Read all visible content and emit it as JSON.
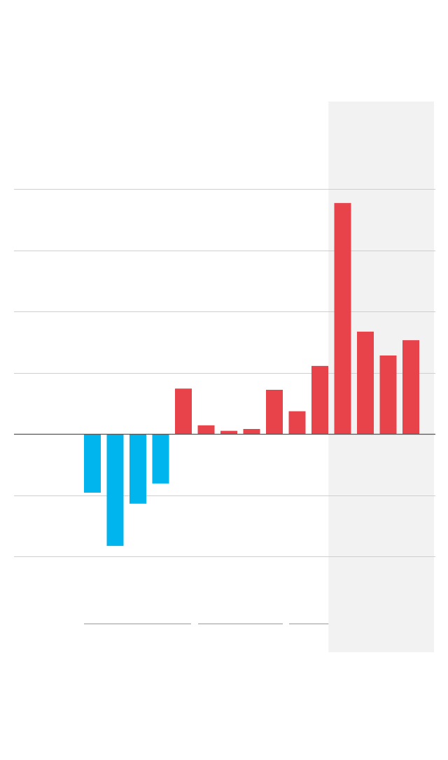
{
  "chart_data": {
    "type": "bar",
    "categories": [
      null,
      null,
      null,
      null,
      null,
      null,
      null,
      null,
      null,
      null,
      null,
      null,
      null,
      null,
      null,
      null,
      null,
      null
    ],
    "values": [
      null,
      null,
      null,
      -0.96,
      -1.83,
      -1.14,
      -0.81,
      0.74,
      0.14,
      0.05,
      0.08,
      0.72,
      0.37,
      1.11,
      3.77,
      1.67,
      1.28,
      1.53
    ],
    "positive_color": "#e8434b",
    "negative_color": "#00b5ee",
    "ylim": [
      -3.6,
      5.4
    ],
    "yticks": [
      -2,
      -1,
      0,
      1,
      2,
      3,
      4
    ],
    "grid": true,
    "highlight": [
      14,
      17
    ],
    "highlight_color": "#f2f2f2"
  }
}
